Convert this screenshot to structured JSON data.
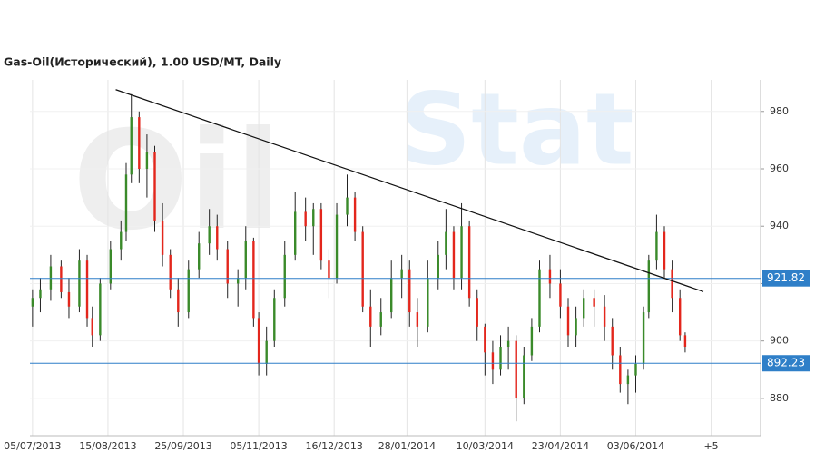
{
  "chart_data": {
    "type": "candlestick",
    "title": "Gas-Oil(Исторический), 1.00 USD/MT, Daily",
    "watermark": [
      "Oil",
      "Stat"
    ],
    "xlim": [
      0,
      281
    ],
    "xticks": [
      {
        "value": 1,
        "label": "05/07/2013"
      },
      {
        "value": 30,
        "label": "15/08/2013"
      },
      {
        "value": 59,
        "label": "25/09/2013"
      },
      {
        "value": 88,
        "label": "05/11/2013"
      },
      {
        "value": 117,
        "label": "16/12/2013"
      },
      {
        "value": 145,
        "label": "28/01/2014"
      },
      {
        "value": 175,
        "label": "10/03/2014"
      },
      {
        "value": 204,
        "label": "23/04/2014"
      },
      {
        "value": 233,
        "label": "03/06/2014"
      },
      {
        "value": 262,
        "label": "+5"
      }
    ],
    "ylim": [
      867,
      991
    ],
    "yticks": [
      880,
      900,
      920,
      940,
      960,
      980
    ],
    "up_color": "#3a8a2a",
    "down_color": "#e3261c",
    "candles": {
      "x": [
        1,
        4,
        8,
        12,
        15,
        19,
        22,
        24,
        27,
        31,
        35,
        37,
        39,
        42,
        45,
        48,
        51,
        54,
        57,
        61,
        65,
        69,
        72,
        76,
        80,
        83,
        86,
        88,
        91,
        94,
        98,
        102,
        106,
        109,
        112,
        115,
        118,
        122,
        125,
        128,
        131,
        135,
        139,
        143,
        146,
        149,
        153,
        157,
        160,
        163,
        166,
        169,
        172,
        175,
        178,
        181,
        184,
        187,
        190,
        193,
        196,
        200,
        204,
        207,
        210,
        213,
        217,
        221,
        224,
        227,
        230,
        233,
        236,
        238,
        241,
        244,
        247,
        250,
        252
      ],
      "open": [
        912,
        915,
        918,
        926,
        917,
        912,
        928,
        908,
        902,
        920,
        932,
        938,
        958,
        978,
        960,
        966,
        942,
        930,
        918,
        910,
        925,
        934,
        940,
        932,
        920,
        922,
        935,
        908,
        892,
        900,
        915,
        930,
        945,
        940,
        946,
        928,
        922,
        944,
        950,
        938,
        912,
        905,
        910,
        922,
        925,
        910,
        905,
        922,
        930,
        938,
        922,
        940,
        915,
        905,
        896,
        890,
        898,
        900,
        880,
        895,
        905,
        925,
        920,
        912,
        902,
        908,
        915,
        912,
        905,
        895,
        885,
        888,
        892,
        910,
        928,
        938,
        925,
        915,
        902
      ],
      "high": [
        918,
        922,
        930,
        928,
        922,
        932,
        930,
        912,
        922,
        935,
        942,
        962,
        986,
        980,
        972,
        968,
        948,
        932,
        922,
        928,
        938,
        946,
        944,
        935,
        925,
        940,
        936,
        910,
        905,
        918,
        935,
        952,
        950,
        948,
        948,
        932,
        948,
        958,
        952,
        940,
        918,
        915,
        928,
        930,
        928,
        915,
        928,
        935,
        946,
        940,
        948,
        942,
        918,
        906,
        900,
        902,
        905,
        902,
        898,
        908,
        928,
        930,
        925,
        915,
        912,
        918,
        918,
        916,
        908,
        898,
        890,
        895,
        912,
        930,
        944,
        940,
        928,
        918,
        903
      ],
      "low": [
        905,
        910,
        914,
        915,
        908,
        910,
        905,
        898,
        900,
        918,
        928,
        935,
        955,
        955,
        950,
        938,
        926,
        915,
        905,
        908,
        922,
        930,
        928,
        915,
        912,
        918,
        905,
        888,
        888,
        898,
        912,
        928,
        935,
        930,
        925,
        915,
        920,
        940,
        935,
        910,
        898,
        902,
        908,
        915,
        905,
        898,
        903,
        918,
        925,
        918,
        918,
        912,
        900,
        888,
        885,
        888,
        890,
        872,
        878,
        893,
        903,
        915,
        908,
        898,
        898,
        905,
        905,
        900,
        890,
        882,
        878,
        882,
        890,
        908,
        925,
        922,
        910,
        900,
        896
      ],
      "close": [
        915,
        918,
        926,
        917,
        912,
        928,
        908,
        902,
        920,
        932,
        938,
        958,
        978,
        960,
        966,
        942,
        930,
        918,
        910,
        925,
        934,
        940,
        932,
        920,
        922,
        935,
        908,
        892,
        900,
        915,
        930,
        945,
        940,
        946,
        928,
        922,
        944,
        950,
        938,
        912,
        905,
        910,
        922,
        925,
        910,
        905,
        922,
        930,
        938,
        922,
        940,
        915,
        905,
        896,
        890,
        898,
        900,
        880,
        895,
        905,
        925,
        920,
        912,
        902,
        908,
        915,
        912,
        905,
        895,
        885,
        888,
        892,
        910,
        928,
        938,
        925,
        915,
        902,
        898
      ]
    },
    "trendline": {
      "x": [
        33,
        259
      ],
      "y": [
        987.6,
        917.2
      ]
    },
    "levels": [
      {
        "value": 921.82,
        "label": "921.82"
      },
      {
        "value": 892.23,
        "label": "892.23"
      }
    ],
    "level_color": "#2f7fc8"
  }
}
